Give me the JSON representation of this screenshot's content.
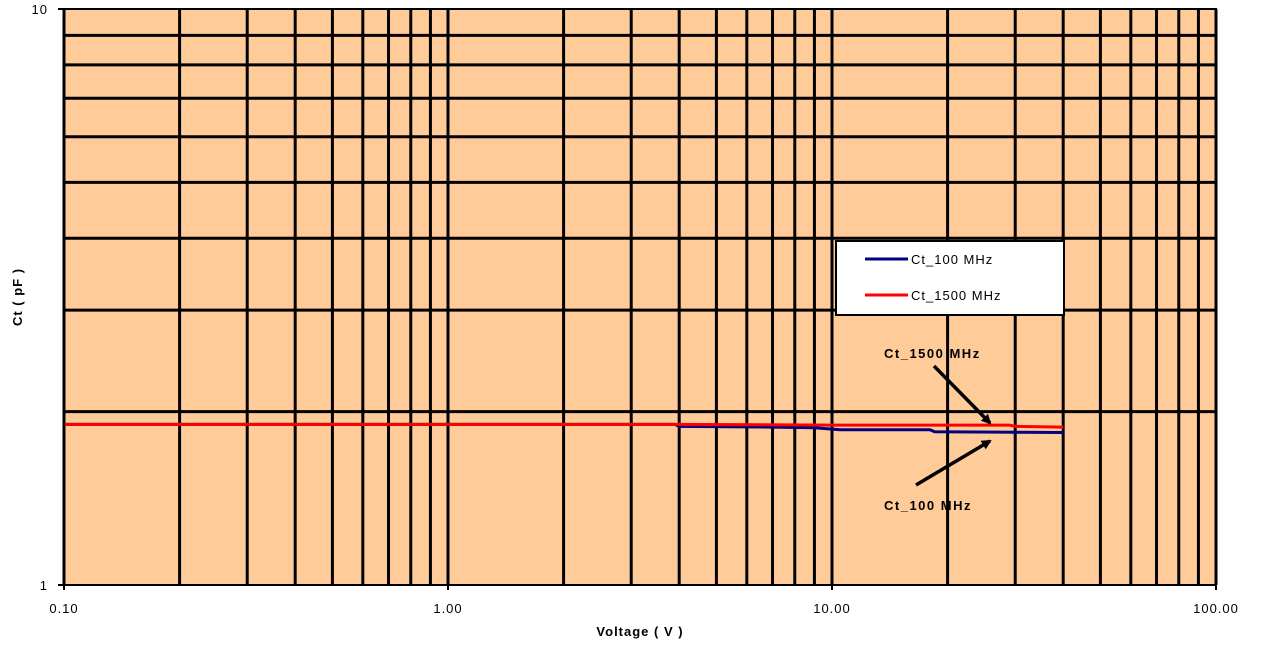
{
  "chart_data": {
    "type": "line",
    "xlabel": "Voltage ( V )",
    "ylabel": "Ct ( pF )",
    "xscale": "log",
    "yscale": "log",
    "xlim": [
      0.1,
      100
    ],
    "ylim": [
      1,
      10
    ],
    "x_tick_labels": [
      "0.10",
      "1.00",
      "10.00",
      "100.00"
    ],
    "y_tick_labels": [
      "1",
      "10"
    ],
    "grid": true,
    "legend_position": "center-right",
    "plot_background": "#FFCC99",
    "series": [
      {
        "name": "Ct_100 MHz",
        "color": "#000080",
        "points": [
          [
            0.1,
            1.9
          ],
          [
            1,
            1.9
          ],
          [
            3.9,
            1.9
          ],
          [
            4,
            1.885
          ],
          [
            7,
            1.88
          ],
          [
            9,
            1.875
          ],
          [
            10.5,
            1.86
          ],
          [
            18,
            1.86
          ],
          [
            18.5,
            1.845
          ],
          [
            40,
            1.84
          ]
        ]
      },
      {
        "name": "Ct_1500 MHz",
        "color": "#FF0000",
        "points": [
          [
            0.1,
            1.9
          ],
          [
            1,
            1.9
          ],
          [
            3.9,
            1.9
          ],
          [
            10,
            1.895
          ],
          [
            29,
            1.895
          ],
          [
            30,
            1.885
          ],
          [
            40,
            1.88
          ]
        ]
      }
    ],
    "annotations": [
      {
        "text": "Ct_1500 MHz",
        "series": "Ct_1500 MHz",
        "x": 27,
        "y": 1.94
      },
      {
        "text": "Ct_100 MHz",
        "series": "Ct_100 MHz",
        "x": 27,
        "y": 1.85
      }
    ]
  }
}
